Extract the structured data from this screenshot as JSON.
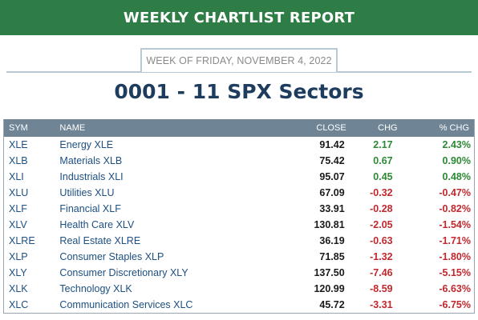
{
  "banner": {
    "title": "WEEKLY CHARTLIST REPORT"
  },
  "week": {
    "label": "WEEK OF FRIDAY, NOVEMBER 4, 2022"
  },
  "page_title": "0001 - 11 SPX Sectors",
  "colors": {
    "banner": "#2f7d46",
    "positive": "#2c8a35",
    "negative": "#c0282d",
    "header": "#6f8595",
    "link": "#1d4f82"
  },
  "table": {
    "headers": {
      "sym": "SYM",
      "name": "NAME",
      "close": "CLOSE",
      "chg": "CHG",
      "pct": "% CHG"
    },
    "rows": [
      {
        "sym": "XLE",
        "name": "Energy XLE",
        "close": "91.42",
        "chg": "2.17",
        "pct": "2.43%",
        "dir": "pos"
      },
      {
        "sym": "XLB",
        "name": "Materials XLB",
        "close": "75.42",
        "chg": "0.67",
        "pct": "0.90%",
        "dir": "pos"
      },
      {
        "sym": "XLI",
        "name": "Industrials XLI",
        "close": "95.07",
        "chg": "0.45",
        "pct": "0.48%",
        "dir": "pos"
      },
      {
        "sym": "XLU",
        "name": "Utilities XLU",
        "close": "67.09",
        "chg": "-0.32",
        "pct": "-0.47%",
        "dir": "neg"
      },
      {
        "sym": "XLF",
        "name": "Financial XLF",
        "close": "33.91",
        "chg": "-0.28",
        "pct": "-0.82%",
        "dir": "neg"
      },
      {
        "sym": "XLV",
        "name": "Health Care XLV",
        "close": "130.81",
        "chg": "-2.05",
        "pct": "-1.54%",
        "dir": "neg"
      },
      {
        "sym": "XLRE",
        "name": "Real Estate XLRE",
        "close": "36.19",
        "chg": "-0.63",
        "pct": "-1.71%",
        "dir": "neg"
      },
      {
        "sym": "XLP",
        "name": "Consumer Staples XLP",
        "close": "71.85",
        "chg": "-1.32",
        "pct": "-1.80%",
        "dir": "neg"
      },
      {
        "sym": "XLY",
        "name": "Consumer Discretionary XLY",
        "close": "137.50",
        "chg": "-7.46",
        "pct": "-5.15%",
        "dir": "neg"
      },
      {
        "sym": "XLK",
        "name": "Technology XLK",
        "close": "120.99",
        "chg": "-8.59",
        "pct": "-6.63%",
        "dir": "neg"
      },
      {
        "sym": "XLC",
        "name": "Communication Services XLC",
        "close": "45.72",
        "chg": "-3.31",
        "pct": "-6.75%",
        "dir": "neg"
      }
    ]
  }
}
